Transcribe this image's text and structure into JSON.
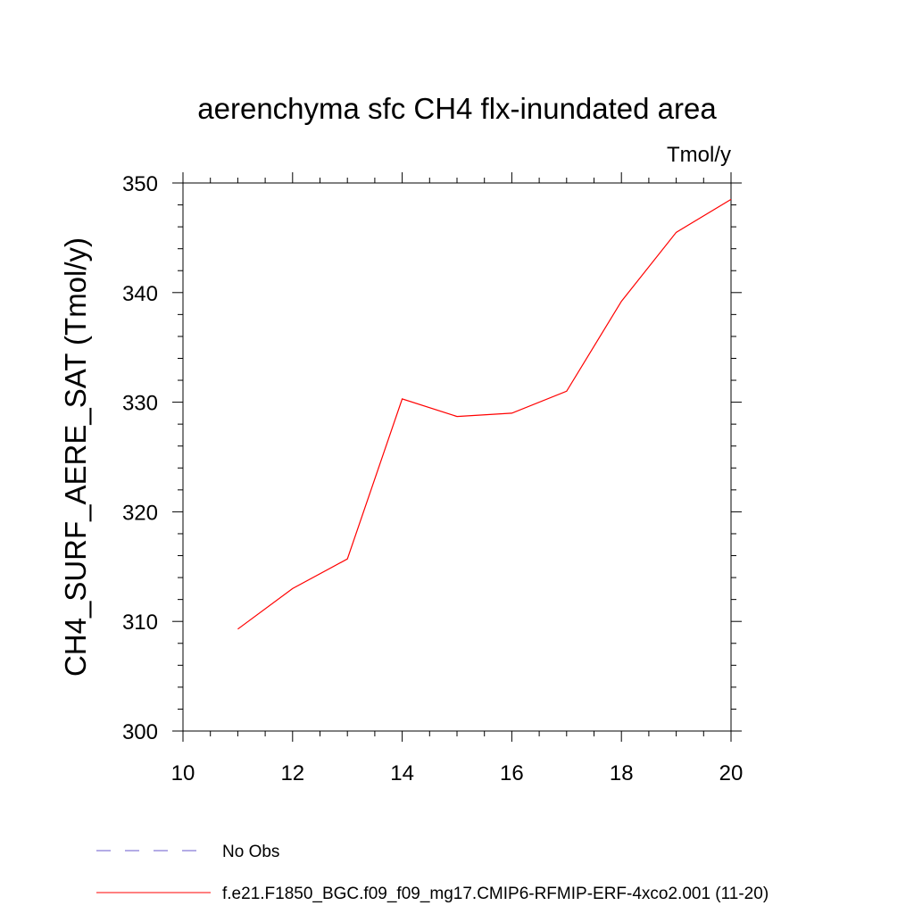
{
  "chart_data": {
    "type": "line",
    "title": "aerenchyma sfc CH4 flx-inundated area",
    "units": "Tmol/y",
    "ylabel": "CH4_SURF_AERE_SAT  (Tmol/y)",
    "xlabel": "",
    "xlim": [
      10,
      20
    ],
    "ylim": [
      300,
      350
    ],
    "x_ticks": [
      10,
      12,
      14,
      16,
      18,
      20
    ],
    "y_ticks": [
      300,
      310,
      320,
      330,
      340,
      350
    ],
    "x_tick_labels": [
      "10",
      "12",
      "14",
      "16",
      "18",
      "20"
    ],
    "y_tick_labels": [
      "300",
      "310",
      "320",
      "330",
      "340",
      "350"
    ],
    "grid": false,
    "series": [
      {
        "name": "f.e21.F1850_BGC.f09_f09_mg17.CMIP6-RFMIP-ERF-4xco2.001 (11-20)",
        "color": "#ff0000",
        "x": [
          11,
          12,
          13,
          14,
          15,
          16,
          17,
          18,
          19,
          20
        ],
        "y": [
          309.3,
          313.0,
          315.7,
          330.3,
          328.7,
          329.0,
          331.0,
          339.2,
          345.5,
          348.5
        ]
      }
    ],
    "legend": {
      "position": "bottom-left",
      "entries": [
        {
          "label": "No Obs",
          "color": "#6a5acd",
          "style": "dashed"
        },
        {
          "label": "f.e21.F1850_BGC.f09_f09_mg17.CMIP6-RFMIP-ERF-4xco2.001 (11-20)",
          "color": "#ff0000",
          "style": "solid"
        }
      ]
    }
  }
}
